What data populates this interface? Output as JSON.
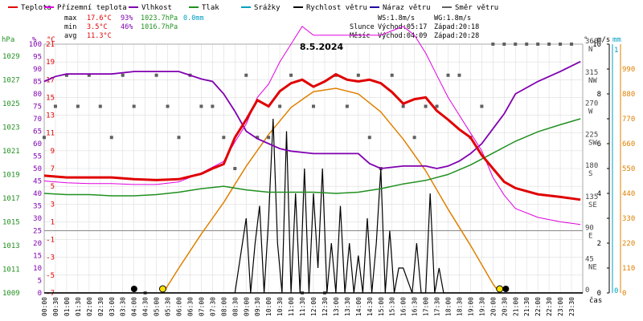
{
  "legend": [
    {
      "name": "Teplota",
      "color": "#e00000"
    },
    {
      "name": "Přízemní teplota",
      "color": "#e000e0"
    },
    {
      "name": "Vlhkost",
      "color": "#8000b0"
    },
    {
      "name": "Tlak",
      "color": "#209020"
    },
    {
      "name": "Srážky",
      "color": "#00a0c0"
    },
    {
      "name": "Rychlost větru",
      "color": "#000000"
    },
    {
      "name": "Náraz větru",
      "color": "#2000a0"
    },
    {
      "name": "Směr větru",
      "color": "#606060"
    }
  ],
  "stats": {
    "max_label": "max",
    "max_temp": "17.6°C",
    "max_hum": "93%",
    "max_press": "1023.7hPa",
    "max_rain": "0.0mm",
    "min_label": "min",
    "min_temp": "3.5°C",
    "min_hum": "46%",
    "min_press": "1016.7hPa",
    "avg_label": "avg",
    "avg_temp": "11.3°C",
    "ws": "WS:1.8m/s",
    "wg": "WG:1.8m/s",
    "sun_label": "Slunce",
    "sunrise": "Východ:05:17",
    "sunset": "Západ:20:18",
    "moon_label": "Měsíc",
    "moonrise": "Východ:04:09",
    "moonset": "Západ:20:28"
  },
  "date": "8.5.2024",
  "axis_units": {
    "press": "hPa",
    "hum": "%",
    "temp": "°C",
    "dir": "°",
    "wind": "m/s",
    "rain": "mm",
    "time": "čas"
  },
  "colors": {
    "temp": "#e00000",
    "ground": "#e000e0",
    "hum": "#8000b0",
    "press": "#209020",
    "rain": "#00a0c0",
    "wind": "#000000",
    "gust": "#2000a0",
    "dir": "#606060",
    "sun": "#e08000",
    "grid": "#dddddd"
  },
  "chart_data": {
    "type": "line",
    "title": "8.5.2024",
    "x_ticks": [
      "00:00",
      "00:30",
      "01:00",
      "01:30",
      "02:00",
      "02:30",
      "03:00",
      "03:30",
      "04:00",
      "04:30",
      "05:00",
      "05:30",
      "06:00",
      "06:30",
      "07:00",
      "07:30",
      "08:00",
      "08:30",
      "09:00",
      "09:30",
      "10:00",
      "10:30",
      "11:00",
      "11:30",
      "12:00",
      "12:30",
      "13:00",
      "13:30",
      "14:00",
      "14:30",
      "15:00",
      "15:30",
      "16:00",
      "16:30",
      "17:00",
      "17:30",
      "18:00",
      "18:30",
      "19:00",
      "19:30",
      "20:00",
      "20:30",
      "21:00",
      "21:30",
      "22:00",
      "22:30",
      "23:00",
      "23:30"
    ],
    "axes": {
      "pressure": {
        "label": "hPa",
        "ticks": [
          1009,
          1011,
          1013,
          1015,
          1017,
          1019,
          1021,
          1023,
          1025,
          1027,
          1029
        ]
      },
      "humidity": {
        "label": "%",
        "ticks": [
          0,
          5,
          10,
          15,
          20,
          25,
          30,
          35,
          40,
          45,
          50,
          55,
          60,
          65,
          70,
          75,
          80,
          85,
          90,
          95,
          100
        ]
      },
      "temperature": {
        "label": "°C",
        "ticks": [
          -7,
          -5,
          -3,
          -1,
          1,
          3,
          5,
          7,
          9,
          11,
          13,
          15,
          17,
          19,
          21
        ]
      },
      "direction": {
        "label": "°",
        "ticks": [
          "0",
          "45 NE",
          "90 E",
          "135 SE",
          "180 S",
          "225 SW",
          "270 W",
          "315 NW",
          "360 N"
        ]
      },
      "wind": {
        "label": "m/s",
        "ticks": [
          0,
          1,
          2,
          3,
          4,
          5,
          6,
          7,
          8,
          9,
          10
        ]
      },
      "rain": {
        "label": "mm",
        "ticks": [
          0,
          1
        ]
      },
      "solar": {
        "ticks": [
          0,
          110,
          220,
          330,
          440,
          550,
          660,
          770,
          880,
          990
        ]
      }
    },
    "series": [
      {
        "name": "Teplota",
        "x": [
          0,
          1,
          2,
          3,
          4,
          5,
          6,
          7,
          7.5,
          8,
          8.5,
          9,
          9.5,
          10,
          10.5,
          11,
          11.5,
          12,
          12.5,
          13,
          13.5,
          14,
          14.5,
          15,
          15.5,
          16,
          16.5,
          17,
          17.5,
          18,
          18.5,
          19,
          19.5,
          20,
          20.5,
          21,
          22,
          23,
          23.9
        ],
        "values": [
          6.2,
          6.0,
          6.0,
          6.0,
          5.8,
          5.7,
          5.8,
          6.4,
          7.0,
          7.5,
          10.5,
          12.5,
          14.7,
          14.0,
          15.7,
          16.6,
          17.0,
          16.2,
          16.8,
          17.6,
          17.0,
          16.8,
          17.0,
          16.6,
          15.6,
          14.3,
          14.8,
          15.0,
          13.5,
          12.5,
          11.4,
          10.5,
          8.5,
          7.0,
          5.5,
          4.8,
          4.1,
          3.8,
          3.5
        ]
      },
      {
        "name": "Přízemní teplota",
        "x": [
          0,
          1,
          2,
          3,
          4,
          5,
          6,
          7,
          8,
          8.5,
          9,
          9.5,
          10,
          10.5,
          11,
          11.5,
          12,
          13,
          14,
          15,
          15.5,
          16,
          16.5,
          17,
          17.5,
          18,
          18.5,
          19,
          19.5,
          20,
          20.5,
          21,
          22,
          23,
          23.9
        ],
        "values": [
          5.6,
          5.4,
          5.3,
          5.3,
          5.2,
          5.2,
          5.5,
          6.5,
          7.8,
          10,
          12,
          15,
          16.5,
          19,
          21,
          23,
          22,
          22,
          22,
          22,
          22.5,
          23,
          22,
          20,
          17.5,
          15,
          13,
          11,
          9,
          6,
          4,
          2.5,
          1.5,
          1.0,
          0.7
        ]
      },
      {
        "name": "Vlhkost",
        "x": [
          0,
          0.5,
          1,
          2,
          3,
          4,
          5,
          6,
          7,
          7.5,
          8,
          8.5,
          9,
          9.5,
          10,
          10.5,
          11,
          12,
          13,
          14,
          14.5,
          15,
          16,
          17,
          17.5,
          18,
          18.5,
          19,
          19.5,
          20,
          20.5,
          21,
          22,
          23,
          23.9
        ],
        "values": [
          85,
          87,
          88,
          88,
          88,
          89,
          89,
          89,
          86,
          85,
          80,
          73,
          65,
          62,
          60,
          58,
          57,
          56,
          56,
          56,
          52,
          50,
          51,
          51,
          50,
          51,
          53,
          56,
          60,
          66,
          72,
          80,
          85,
          89,
          93
        ]
      },
      {
        "name": "Tlak",
        "x": [
          0,
          1,
          2,
          3,
          4,
          5,
          6,
          7,
          8,
          9,
          10,
          11,
          12,
          13,
          14,
          15,
          16,
          17,
          18,
          19,
          20,
          21,
          22,
          23,
          23.9
        ],
        "values": [
          1017.4,
          1017.3,
          1017.3,
          1017.2,
          1017.2,
          1017.3,
          1017.5,
          1017.8,
          1018.0,
          1017.7,
          1017.5,
          1017.5,
          1017.5,
          1017.4,
          1017.5,
          1017.8,
          1018.2,
          1018.5,
          1019.0,
          1019.8,
          1020.8,
          1021.8,
          1022.6,
          1023.2,
          1023.7
        ]
      },
      {
        "name": "Rychlost větru",
        "x": [
          0,
          4,
          8.5,
          9,
          9.2,
          9.4,
          9.6,
          9.8,
          10,
          10.2,
          10.4,
          10.6,
          10.8,
          11,
          11.2,
          11.4,
          11.6,
          11.8,
          12,
          12.2,
          12.4,
          12.6,
          12.8,
          13,
          13.2,
          13.4,
          13.6,
          13.8,
          14,
          14.2,
          14.4,
          14.6,
          14.8,
          15,
          15.2,
          15.4,
          15.6,
          15.8,
          16,
          16.2,
          16.4,
          16.6,
          16.8,
          17,
          17.2,
          17.4,
          17.6,
          17.8,
          18,
          24
        ],
        "values": [
          0,
          0,
          0,
          3,
          0,
          2,
          3.5,
          0,
          3,
          7,
          2,
          0,
          6.5,
          0,
          4,
          0,
          5,
          0,
          4,
          1,
          5,
          0,
          2,
          0,
          3.5,
          0,
          2,
          0,
          1.5,
          0,
          3,
          0,
          2,
          5,
          0,
          2.5,
          0,
          1,
          1,
          0.5,
          0,
          2,
          0,
          0,
          4,
          0,
          1,
          0,
          0,
          0
        ]
      },
      {
        "name": "Náraz větru",
        "x": [
          0,
          24
        ],
        "values": [
          0,
          0
        ]
      },
      {
        "name": "Směr větru",
        "x": [
          0,
          0.5,
          1,
          1.5,
          2,
          2.5,
          3,
          3.5,
          4,
          4.5,
          5,
          5.5,
          6,
          6.5,
          7,
          7.5,
          8,
          8.5,
          9,
          9.5,
          10,
          10.5,
          11,
          11.5,
          12,
          12.5,
          13,
          13.5,
          14,
          14.5,
          15,
          15.5,
          16,
          16.5,
          17,
          17.5,
          18,
          18.5,
          19,
          19.5,
          20,
          20.5,
          21,
          21.5,
          22,
          22.5,
          23,
          23.5
        ],
        "values": [
          225,
          270,
          315,
          270,
          315,
          270,
          225,
          315,
          270,
          0,
          315,
          270,
          225,
          315,
          270,
          270,
          225,
          180,
          315,
          225,
          225,
          270,
          315,
          0,
          270,
          0,
          315,
          270,
          315,
          225,
          180,
          315,
          270,
          225,
          270,
          270,
          315,
          315,
          225,
          270,
          360,
          360,
          360,
          360,
          360,
          360,
          360,
          360
        ]
      },
      {
        "name": "Srážky",
        "x": [
          0,
          24
        ],
        "values": [
          0,
          0
        ]
      }
    ],
    "solar": {
      "x": [
        5.3,
        6,
        7,
        8,
        9,
        10,
        11,
        12,
        13,
        14,
        15,
        16,
        17,
        18,
        19,
        20,
        20.3
      ],
      "values": [
        0,
        110,
        260,
        400,
        560,
        700,
        820,
        890,
        905,
        880,
        800,
        680,
        540,
        370,
        210,
        40,
        0
      ]
    },
    "events": {
      "moonrise": "04:09",
      "sunrise": "05:17",
      "sunset": "20:18",
      "moonset": "20:28"
    }
  }
}
